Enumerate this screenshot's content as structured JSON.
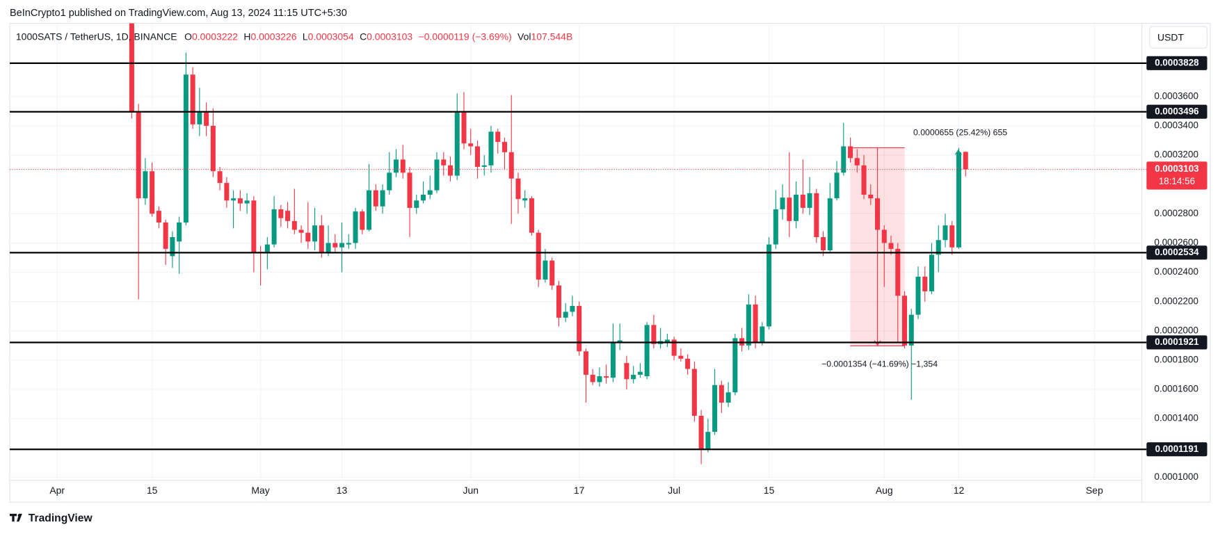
{
  "header": "BeInCrypto1 published on TradingView.com, Aug 13, 2024 11:15 UTC+5:30",
  "footer": "TradingView",
  "currency_button": "USDT",
  "legend": {
    "symbol": "1000SATS / TetherUS, 1D, BINANCE",
    "labels": [
      "O",
      "H",
      "L",
      "C"
    ],
    "change": "−0.0000119 (−3.69%)",
    "vol_label": "Vol",
    "volume": "107.544B"
  },
  "chart_data": {
    "type": "candlestick",
    "up_color": "#089981",
    "down_color": "#f23645",
    "x": [
      "2024-04-12",
      "2024-04-13",
      "2024-04-14",
      "2024-04-15",
      "2024-04-16",
      "2024-04-17",
      "2024-04-18",
      "2024-04-19",
      "2024-04-20",
      "2024-04-21",
      "2024-04-22",
      "2024-04-23",
      "2024-04-24",
      "2024-04-25",
      "2024-04-26",
      "2024-04-27",
      "2024-04-28",
      "2024-04-29",
      "2024-04-30",
      "2024-05-01",
      "2024-05-02",
      "2024-05-03",
      "2024-05-04",
      "2024-05-05",
      "2024-05-06",
      "2024-05-07",
      "2024-05-08",
      "2024-05-09",
      "2024-05-10",
      "2024-05-11",
      "2024-05-12",
      "2024-05-13",
      "2024-05-14",
      "2024-05-15",
      "2024-05-16",
      "2024-05-17",
      "2024-05-18",
      "2024-05-19",
      "2024-05-20",
      "2024-05-21",
      "2024-05-22",
      "2024-05-23",
      "2024-05-24",
      "2024-05-25",
      "2024-05-26",
      "2024-05-27",
      "2024-05-28",
      "2024-05-29",
      "2024-05-30",
      "2024-05-31",
      "2024-06-01",
      "2024-06-02",
      "2024-06-03",
      "2024-06-04",
      "2024-06-05",
      "2024-06-06",
      "2024-06-07",
      "2024-06-08",
      "2024-06-09",
      "2024-06-10",
      "2024-06-11",
      "2024-06-12",
      "2024-06-13",
      "2024-06-14",
      "2024-06-15",
      "2024-06-16",
      "2024-06-17",
      "2024-06-18",
      "2024-06-19",
      "2024-06-20",
      "2024-06-21",
      "2024-06-22",
      "2024-06-23",
      "2024-06-24",
      "2024-06-25",
      "2024-06-26",
      "2024-06-27",
      "2024-06-28",
      "2024-06-29",
      "2024-06-30",
      "2024-07-01",
      "2024-07-02",
      "2024-07-03",
      "2024-07-04",
      "2024-07-05",
      "2024-07-06",
      "2024-07-07",
      "2024-07-08",
      "2024-07-09",
      "2024-07-10",
      "2024-07-11",
      "2024-07-12",
      "2024-07-13",
      "2024-07-14",
      "2024-07-15",
      "2024-07-16",
      "2024-07-17",
      "2024-07-18",
      "2024-07-19",
      "2024-07-20",
      "2024-07-21",
      "2024-07-22",
      "2024-07-23",
      "2024-07-24",
      "2024-07-25",
      "2024-07-26",
      "2024-07-27",
      "2024-07-28",
      "2024-07-29",
      "2024-07-30",
      "2024-07-31",
      "2024-08-01",
      "2024-08-02",
      "2024-08-03",
      "2024-08-04",
      "2024-08-05",
      "2024-08-06",
      "2024-08-07",
      "2024-08-08",
      "2024-08-09",
      "2024-08-10",
      "2024-08-11",
      "2024-08-12",
      "2024-08-13"
    ],
    "open": [
      0.00041,
      0.000349,
      0.0002905,
      0.000309,
      0.000282,
      0.000274,
      0.000251,
      0.000261,
      0.000274,
      0.000375,
      0.000341,
      0.000349,
      0.00034,
      0.000309,
      0.000301,
      0.000289,
      0.0002905,
      0.000287,
      0.000289,
      0.000254,
      0.000253,
      0.000259,
      0.000283,
      0.000282,
      0.000275,
      0.000269,
      0.000267,
      0.000261,
      0.000272,
      0.000253,
      0.00026,
      0.000257,
      0.000259,
      0.00026,
      0.0002815,
      0.000269,
      0.000296,
      0.000285,
      0.000296,
      0.000308,
      0.000317,
      0.000308,
      0.000284,
      0.000289,
      0.000293,
      0.000296,
      0.000317,
      0.000313,
      0.000306,
      0.000349,
      0.000328,
      0.000326,
      0.000312,
      0.000313,
      0.000336,
      0.000329,
      0.000322,
      0.000304,
      0.000289,
      0.0002905,
      0.000267,
      0.000235,
      0.000248,
      0.000231,
      0.000209,
      0.000213,
      0.000217,
      0.000186,
      0.00017,
      0.000165,
      0.000169,
      0.000168,
      0.000192,
      0.000178,
      0.000167,
      0.00017,
      0.000169,
      0.000204,
      0.000191,
      0.000192,
      0.000194,
      0.000183,
      0.000181,
      0.000174,
      0.000142,
      0.000119,
      0.000131,
      0.000163,
      0.000151,
      0.000158,
      0.000195,
      0.00019,
      0.000218,
      0.000192,
      0.000203,
      0.000259,
      0.000283,
      0.000291,
      0.000275,
      0.000293,
      0.000284,
      0.000294,
      0.000264,
      0.000255,
      0.0002905,
      0.000308,
      0.000326,
      0.000318,
      0.000313,
      0.000293,
      0.0002905,
      0.000269,
      0.00026,
      0.000256,
      0.000224,
      0.00019,
      0.000211,
      0.000237,
      0.000227,
      0.000252,
      0.000262,
      0.000272,
      0.000257,
      0.0003222
    ],
    "high": [
      0.000415,
      0.000355,
      0.000318,
      0.000315,
      0.000285,
      0.000276,
      0.000268,
      0.000278,
      0.00039,
      0.00038,
      0.000366,
      0.000356,
      0.000352,
      0.000312,
      0.000305,
      0.000296,
      0.000296,
      0.000294,
      0.000292,
      0.000258,
      0.000264,
      0.000292,
      0.000286,
      0.000288,
      0.000297,
      0.000272,
      0.000288,
      0.000284,
      0.000279,
      0.000272,
      0.000266,
      0.000274,
      0.000266,
      0.000284,
      0.000283,
      0.000314,
      0.0003,
      0.0003,
      0.000322,
      0.000324,
      0.000327,
      0.000312,
      0.000293,
      0.000302,
      0.000306,
      0.000322,
      0.000322,
      0.000319,
      0.000362,
      0.000363,
      0.000338,
      0.00033,
      0.00032,
      0.00034,
      0.000338,
      0.000332,
      0.000361,
      0.000308,
      0.000296,
      0.000292,
      0.000269,
      0.000256,
      0.00025,
      0.000234,
      0.000219,
      0.000224,
      0.00022,
      0.000188,
      0.000174,
      0.000175,
      0.000177,
      0.000205,
      0.000205,
      0.000183,
      0.000176,
      0.000178,
      0.000206,
      0.000211,
      0.000202,
      0.000198,
      0.000196,
      0.000188,
      0.000184,
      0.000179,
      0.000146,
      0.00014,
      0.000174,
      0.000166,
      0.000165,
      0.000198,
      0.000202,
      0.000225,
      0.000224,
      0.000206,
      0.000264,
      0.000296,
      0.0003,
      0.000322,
      0.000302,
      0.000317,
      0.000305,
      0.000297,
      0.000268,
      0.000301,
      0.000316,
      0.000342,
      0.000332,
      0.000324,
      0.00032,
      0.0003,
      0.000296,
      0.000272,
      0.000265,
      0.00026,
      0.000227,
      0.000215,
      0.000244,
      0.000244,
      0.00026,
      0.000272,
      0.00028,
      0.000275,
      0.000325,
      0.0003226
    ],
    "low": [
      0.000345,
      0.0002215,
      0.000286,
      0.000278,
      0.00027,
      0.000245,
      0.000243,
      0.000239,
      0.000272,
      0.000338,
      0.000333,
      0.000333,
      0.000305,
      0.000296,
      0.000284,
      0.00027,
      0.000282,
      0.00028,
      0.00024,
      0.000231,
      0.000242,
      0.000257,
      0.000271,
      0.00027,
      0.000266,
      0.00026,
      0.000256,
      0.000255,
      0.00025,
      0.000251,
      0.000254,
      0.00024,
      0.000256,
      0.000256,
      0.000266,
      0.000268,
      0.000282,
      0.00028,
      0.000293,
      0.000305,
      0.000304,
      0.000264,
      0.00028,
      0.000287,
      0.00029,
      0.000294,
      0.000306,
      0.000302,
      0.000303,
      0.000324,
      0.00032,
      0.000304,
      0.000306,
      0.000308,
      0.000321,
      0.00031,
      0.000273,
      0.00028,
      0.000284,
      0.000265,
      0.00023,
      0.000233,
      0.000228,
      0.000203,
      0.000206,
      0.00021,
      0.000183,
      0.000151,
      0.000163,
      0.000162,
      0.000164,
      0.000165,
      0.000187,
      0.00016,
      0.000164,
      0.000168,
      0.000167,
      0.000188,
      0.000188,
      0.000189,
      0.00018,
      0.000179,
      0.00017,
      0.000138,
      0.000109,
      0.000117,
      0.000129,
      0.000144,
      0.000148,
      0.000156,
      0.000186,
      0.000187,
      0.000188,
      0.00019,
      0.000201,
      0.000256,
      0.000276,
      0.000264,
      0.00027,
      0.00028,
      0.000279,
      0.00026,
      0.000251,
      0.000254,
      0.000289,
      0.000306,
      0.000315,
      0.000308,
      0.00029,
      0.000286,
      0.000192,
      0.00023,
      0.000252,
      0.000192,
      0.000188,
      0.000153,
      0.000208,
      0.00022,
      0.000225,
      0.00024,
      0.000257,
      0.000252,
      0.000256,
      0.0003054
    ],
    "close": [
      0.000349,
      0.0002905,
      0.000309,
      0.00028,
      0.000274,
      0.000256,
      0.000264,
      0.000274,
      0.000375,
      0.000341,
      0.000349,
      0.00034,
      0.000309,
      0.000301,
      0.000289,
      0.0002905,
      0.000287,
      0.000289,
      0.0002535,
      0.000253,
      0.000259,
      0.000283,
      0.000277,
      0.000275,
      0.000269,
      0.000267,
      0.000261,
      0.000272,
      0.000253,
      0.00026,
      0.000257,
      0.00026,
      0.00026,
      0.0002815,
      0.000269,
      0.000296,
      0.000285,
      0.000296,
      0.000308,
      0.000317,
      0.000308,
      0.000284,
      0.000289,
      0.000293,
      0.000296,
      0.000317,
      0.000313,
      0.000306,
      0.000349,
      0.000328,
      0.000326,
      0.000312,
      0.000313,
      0.000336,
      0.000329,
      0.000322,
      0.000304,
      0.00029,
      0.0002905,
      0.000267,
      0.000235,
      0.000248,
      0.000231,
      0.000209,
      0.000213,
      0.000217,
      0.000186,
      0.00017,
      0.000165,
      0.000169,
      0.000168,
      0.000192,
      0.0001935,
      0.000167,
      0.00017,
      0.000172,
      0.000204,
      0.000191,
      0.000193,
      0.000194,
      0.000183,
      0.000181,
      0.000174,
      0.000142,
      0.000119,
      0.000131,
      0.000163,
      0.000151,
      0.000158,
      0.000195,
      0.00019,
      0.000218,
      0.000192,
      0.000203,
      0.000259,
      0.000283,
      0.000291,
      0.000275,
      0.000293,
      0.000284,
      0.000294,
      0.000264,
      0.000255,
      0.0002905,
      0.000308,
      0.000326,
      0.000318,
      0.000313,
      0.000293,
      0.0002905,
      0.000269,
      0.00026,
      0.000256,
      0.000224,
      0.00019,
      0.000211,
      0.000237,
      0.000227,
      0.000252,
      0.000262,
      0.000272,
      0.000257,
      0.000322,
      0.0003103
    ],
    "xlim": [
      "2024-03-25",
      "2024-09-08"
    ],
    "xticks": [
      {
        "value": "2024-04-01",
        "label": "Apr"
      },
      {
        "value": "2024-04-15",
        "label": "15"
      },
      {
        "value": "2024-05-01",
        "label": "May"
      },
      {
        "value": "2024-05-13",
        "label": "13"
      },
      {
        "value": "2024-06-01",
        "label": "Jun"
      },
      {
        "value": "2024-06-17",
        "label": "17"
      },
      {
        "value": "2024-07-01",
        "label": "Jul"
      },
      {
        "value": "2024-07-15",
        "label": "15"
      },
      {
        "value": "2024-08-01",
        "label": "Aug"
      },
      {
        "value": "2024-08-12",
        "label": "12"
      },
      {
        "value": "2024-09-01",
        "label": "Sep"
      }
    ],
    "ylim": [
      9.79e-05,
      0.00041
    ],
    "yticks": [
      {
        "value": 0.0001,
        "label": "0.0001000"
      },
      {
        "value": 0.00014,
        "label": "0.0001400"
      },
      {
        "value": 0.00016,
        "label": "0.0001600"
      },
      {
        "value": 0.00018,
        "label": "0.0001800"
      },
      {
        "value": 0.0002,
        "label": "0.0002000"
      },
      {
        "value": 0.00022,
        "label": "0.0002200"
      },
      {
        "value": 0.00024,
        "label": "0.0002400"
      },
      {
        "value": 0.00026,
        "label": "0.0002600"
      },
      {
        "value": 0.00028,
        "label": "0.0002800"
      },
      {
        "value": 0.00032,
        "label": "0.0003200"
      },
      {
        "value": 0.00034,
        "label": "0.0003400"
      },
      {
        "value": 0.00036,
        "label": "0.0003600"
      }
    ],
    "grid": true,
    "levels": [
      {
        "value": 0.0003828,
        "label": "0.0003828"
      },
      {
        "value": 0.0003496,
        "label": "0.0003496"
      },
      {
        "value": 0.0002534,
        "label": "0.0002534"
      },
      {
        "value": 0.0001921,
        "label": "0.0001921"
      },
      {
        "value": 0.0001191,
        "label": "0.0001191"
      }
    ],
    "countdown": "18:14:56",
    "annotations": [
      "0.0000655 (25.42%) 655",
      "−0.0001354 (−41.69%) −1,354"
    ]
  }
}
